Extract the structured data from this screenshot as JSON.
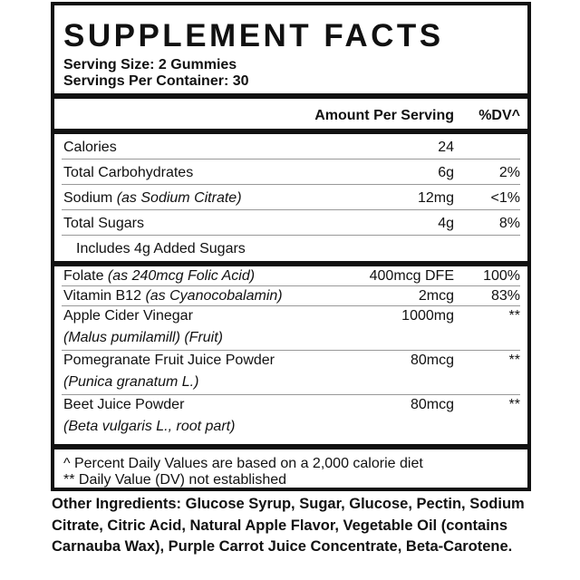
{
  "header": {
    "title": "SUPPLEMENT FACTS",
    "serving_size": "Serving Size: 2 Gummies",
    "servings_per_container": "Servings Per Container: 30"
  },
  "table": {
    "columns": {
      "amount": "Amount Per Serving",
      "dv": "%DV^"
    },
    "sections": [
      {
        "rows": [
          {
            "name": "Calories",
            "amount": "24"
          },
          {
            "name": "Total Carbohydrates",
            "amount": "6g",
            "dv": "2%"
          },
          {
            "name": "Sodium",
            "note": "(as Sodium Citrate)",
            "amount": "12mg",
            "dv": "<1%"
          },
          {
            "name": "Total Sugars",
            "amount": "4g",
            "dv": "8%"
          },
          {
            "name": "Includes 4g Added Sugars"
          }
        ]
      },
      {
        "rows": [
          {
            "name": "Folate",
            "note": "(as 240mcg Folic Acid)",
            "amount": "400mcg DFE",
            "dv": "100%"
          },
          {
            "name": "Vitamin B12",
            "note": "(as Cyanocobalamin)",
            "amount": "2mcg",
            "dv": "83%"
          },
          {
            "name": "Apple Cider Vinegar",
            "source": "(Malus pumilamill) (Fruit)",
            "amount": "1000mg",
            "dv": "**"
          },
          {
            "name": "Pomegranate Fruit Juice Powder",
            "source": "(Punica granatum L.)",
            "amount": "80mcg",
            "dv": "**"
          },
          {
            "name": "Beet Juice Powder",
            "source": "(Beta vulgaris L., root part)",
            "amount": "80mcg",
            "dv": "**"
          }
        ]
      }
    ]
  },
  "footnotes": [
    "^ Percent Daily Values are based on a 2,000 calorie diet",
    "** Daily Value (DV) not established"
  ],
  "other_ingredients": {
    "label": "Other Ingredients:",
    "text": "Glucose Syrup, Sugar, Glucose, Pectin, Sodium Citrate, Citric Acid, Natural Apple Flavor, Vegetable Oil (contains Carnauba Wax), Purple Carrot Juice Concentrate, Beta-Carotene."
  }
}
